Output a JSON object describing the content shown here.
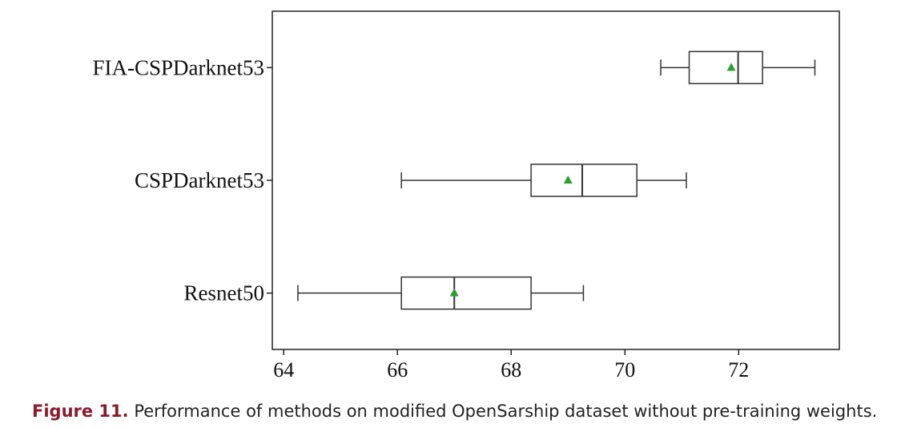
{
  "chart_data": {
    "type": "box",
    "orientation": "horizontal",
    "categories": [
      "FIA-CSPDarknet53",
      "CSPDarknet53",
      "Resnet50"
    ],
    "boxes": [
      {
        "whislo": 70.63,
        "q1": 71.13,
        "med": 71.99,
        "q3": 72.42,
        "whishi": 73.34,
        "mean": 71.87
      },
      {
        "whislo": 66.07,
        "q1": 68.35,
        "med": 69.25,
        "q3": 70.21,
        "whishi": 71.08,
        "mean": 69.0
      },
      {
        "whislo": 64.25,
        "q1": 66.07,
        "med": 67.0,
        "q3": 68.35,
        "whishi": 69.27,
        "mean": 67.0
      }
    ],
    "box_color": "#ffffff",
    "line_color": "#333333",
    "mean_color": "#2ca02c",
    "xlim": [
      63.8,
      73.77
    ],
    "xticks": [
      64,
      66,
      68,
      70,
      72
    ]
  },
  "caption": {
    "label": "Figure 11.",
    "text": " Performance of methods on modified OpenSarship dataset without pre-training weights."
  }
}
